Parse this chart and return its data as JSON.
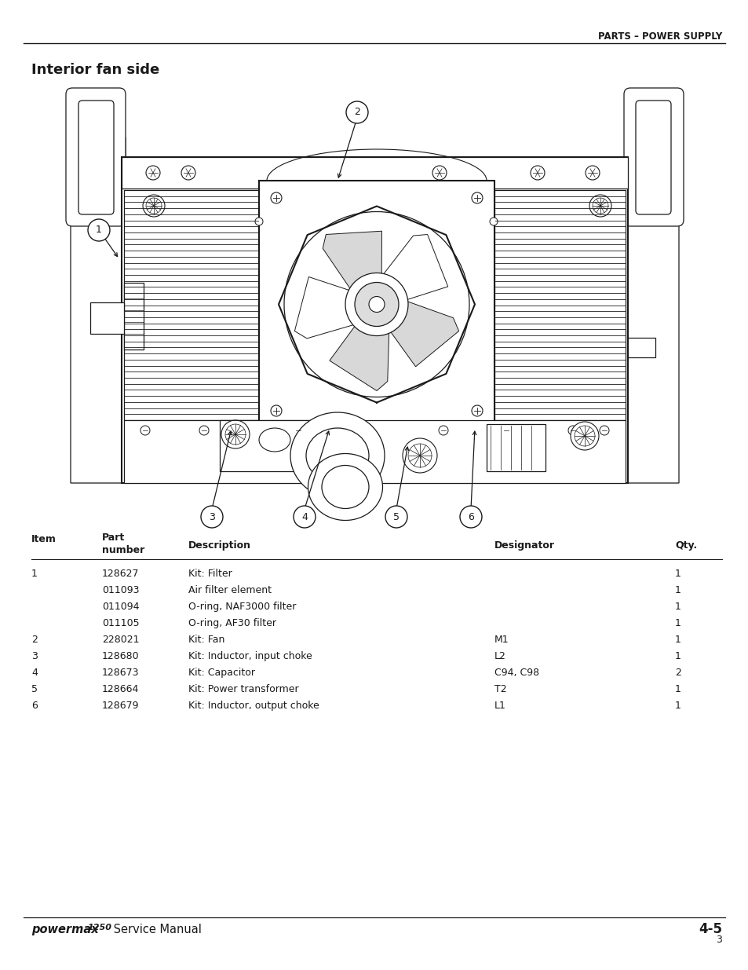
{
  "page_header_right": "PARTS – POWER SUPPLY",
  "section_title": "Interior fan side",
  "footer_left_bold": "powermax1250",
  "footer_left_regular": " Service Manual",
  "footer_right": "4-5",
  "footer_page": "3",
  "table_col_headers": [
    "Item",
    "Part\nnumber",
    "Description",
    "Designator",
    "Qty."
  ],
  "table_rows": [
    [
      "1",
      "128627",
      "Kit: Filter",
      "",
      "1"
    ],
    [
      "",
      "011093",
      "Air filter element",
      "",
      "1"
    ],
    [
      "",
      "011094",
      "O-ring, NAF3000 filter",
      "",
      "1"
    ],
    [
      "",
      "011105",
      "O-ring, AF30 filter",
      "",
      "1"
    ],
    [
      "2",
      "228021",
      "Kit: Fan",
      "M1",
      "1"
    ],
    [
      "3",
      "128680",
      "Kit: Inductor, input choke",
      "L2",
      "1"
    ],
    [
      "4",
      "128673",
      "Kit: Capacitor",
      "C94, C98",
      "2"
    ],
    [
      "5",
      "128664",
      "Kit: Power transformer",
      "T2",
      "1"
    ],
    [
      "6",
      "128679",
      "Kit: Inductor, output choke",
      "L1",
      "1"
    ]
  ],
  "background_color": "#ffffff",
  "text_color": "#1a1a1a",
  "line_color": "#222222"
}
